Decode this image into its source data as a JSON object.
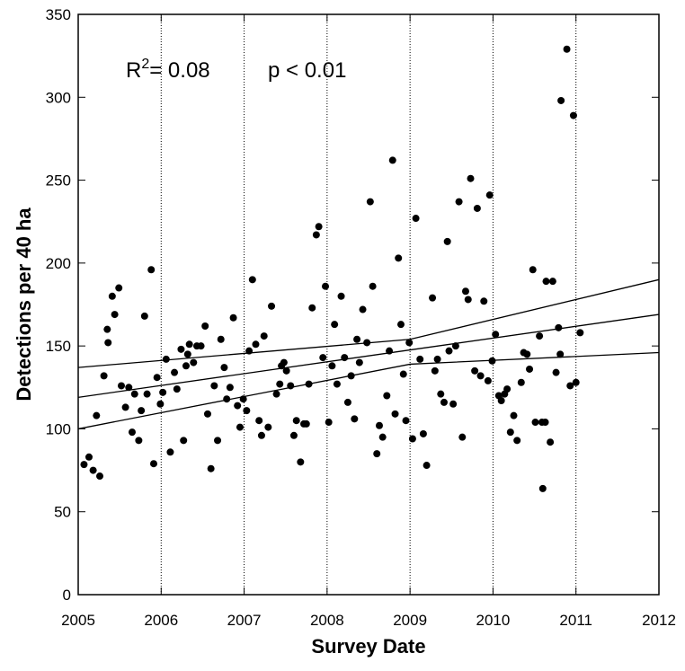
{
  "chart_data": {
    "type": "scatter",
    "annotation": {
      "r_label": "R",
      "r_sup": "2",
      "r_value": "= 0.08",
      "p_value": "p < 0.01"
    },
    "x_label": "Survey Date",
    "y_label": "Detections per 40 ha",
    "xlim": [
      2005,
      2012
    ],
    "ylim": [
      0,
      350
    ],
    "xticks": [
      2005,
      2006,
      2007,
      2008,
      2009,
      2010,
      2011,
      2012
    ],
    "yticks": [
      0,
      50,
      100,
      150,
      200,
      250,
      300,
      350
    ],
    "grid": "x",
    "color": "#000000",
    "x": [
      2005.07,
      2005.13,
      2005.18,
      2005.22,
      2005.26,
      2005.31,
      2005.35,
      2005.36,
      2005.41,
      2005.44,
      2005.49,
      2005.52,
      2005.57,
      2005.61,
      2005.65,
      2005.68,
      2005.73,
      2005.76,
      2005.8,
      2005.83,
      2005.88,
      2005.91,
      2005.95,
      2005.99,
      2006.02,
      2006.06,
      2006.11,
      2006.16,
      2006.19,
      2006.24,
      2006.27,
      2006.3,
      2006.32,
      2006.34,
      2006.39,
      2006.43,
      2006.48,
      2006.53,
      2006.56,
      2006.6,
      2006.64,
      2006.68,
      2006.72,
      2006.76,
      2006.79,
      2006.83,
      2006.87,
      2006.92,
      2006.95,
      2006.99,
      2007.03,
      2007.06,
      2007.1,
      2007.14,
      2007.18,
      2007.21,
      2007.24,
      2007.29,
      2007.33,
      2007.39,
      2007.43,
      2007.45,
      2007.48,
      2007.51,
      2007.56,
      2007.6,
      2007.63,
      2007.68,
      2007.72,
      2007.75,
      2007.78,
      2007.82,
      2007.87,
      2007.9,
      2007.95,
      2007.98,
      2008.02,
      2008.06,
      2008.09,
      2008.12,
      2008.17,
      2008.21,
      2008.25,
      2008.29,
      2008.33,
      2008.36,
      2008.39,
      2008.43,
      2008.48,
      2008.52,
      2008.55,
      2008.6,
      2008.63,
      2008.67,
      2008.72,
      2008.75,
      2008.79,
      2008.82,
      2008.86,
      2008.89,
      2008.92,
      2008.95,
      2008.99,
      2009.03,
      2009.07,
      2009.12,
      2009.16,
      2009.2,
      2009.27,
      2009.3,
      2009.33,
      2009.37,
      2009.41,
      2009.45,
      2009.47,
      2009.52,
      2009.55,
      2009.59,
      2009.63,
      2009.67,
      2009.7,
      2009.73,
      2009.78,
      2009.81,
      2009.85,
      2009.89,
      2009.94,
      2009.96,
      2009.99,
      2010.03,
      2010.07,
      2010.1,
      2010.14,
      2010.17,
      2010.21,
      2010.25,
      2010.29,
      2010.34,
      2010.37,
      2010.41,
      2010.44,
      2010.48,
      2010.51,
      2010.56,
      2010.59,
      2010.6,
      2010.63,
      2010.64,
      2010.69,
      2010.72,
      2010.76,
      2010.79,
      2010.81,
      2010.82,
      2010.89,
      2010.93,
      2010.97,
      2011.0,
      2011.05
    ],
    "values": [
      78.5,
      83,
      75,
      108,
      71.5,
      132,
      160,
      152,
      180,
      169,
      185,
      126,
      113,
      125,
      98,
      121,
      93,
      111,
      168,
      121,
      196,
      79,
      131,
      115,
      122,
      142,
      86,
      134,
      124,
      148,
      93,
      138,
      145,
      151,
      140,
      150,
      150,
      162,
      109,
      76,
      126,
      93,
      154,
      137,
      118,
      125,
      167,
      114,
      101,
      118,
      111,
      147,
      190,
      151,
      105,
      96,
      156,
      101,
      174,
      121,
      127,
      138,
      140,
      135,
      126,
      96,
      105,
      80,
      103,
      103,
      127,
      173,
      217,
      222,
      143,
      186,
      104,
      138,
      163,
      127,
      180,
      143,
      116,
      132,
      106,
      154,
      140,
      172,
      152,
      237,
      186,
      85,
      102,
      95,
      120,
      147,
      262,
      109,
      203,
      163,
      133,
      105,
      152,
      94,
      227,
      142,
      97,
      78,
      179,
      135,
      142,
      121,
      116,
      213,
      147,
      115,
      150,
      237,
      95,
      183,
      178,
      251,
      135,
      233,
      132,
      177,
      129,
      241,
      141,
      157,
      120,
      117,
      121,
      124,
      98,
      108,
      93,
      128,
      146,
      145,
      136,
      196,
      104,
      156,
      104,
      64,
      104,
      189,
      92,
      189,
      134,
      161,
      145,
      298,
      329,
      126,
      289,
      128,
      158
    ],
    "fit": {
      "x": [
        2005,
        2009,
        2012
      ],
      "y": [
        119,
        147.6,
        169
      ],
      "upper": [
        137,
        154,
        190
      ],
      "lower": [
        100,
        139,
        146
      ]
    }
  }
}
